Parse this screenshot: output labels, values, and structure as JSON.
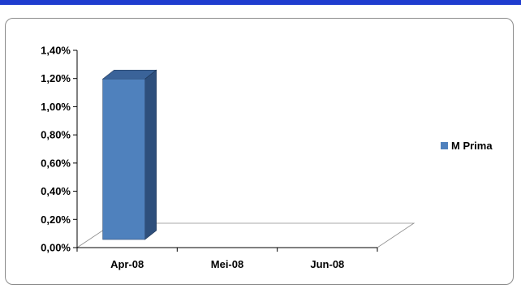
{
  "chart_data": {
    "type": "bar",
    "title": "",
    "xlabel": "",
    "ylabel": "",
    "categories": [
      "Apr-08",
      "Mei-08",
      "Jun-08"
    ],
    "series": [
      {
        "name": "M Prima",
        "values": [
          1.22,
          0,
          0
        ],
        "color": "#4f81bd"
      }
    ],
    "ylim": [
      0,
      1.4
    ],
    "yticks": [
      "0,00%",
      "0,20%",
      "0,40%",
      "0,60%",
      "0,80%",
      "1,00%",
      "1,20%",
      "1,40%"
    ],
    "three_d": true,
    "grid": false,
    "legend_position": "right"
  },
  "colors": {
    "top_bar": "#1f3ccf",
    "frame_border": "#8c8c8c",
    "bar_front": "#4f81bd",
    "bar_side": "#2e4f7c",
    "bar_top": "#3a6399"
  }
}
